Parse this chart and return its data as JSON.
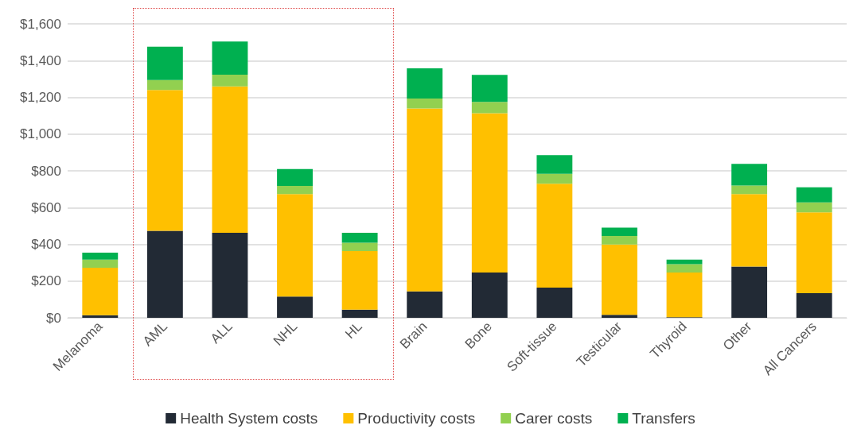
{
  "chart_data": {
    "type": "bar",
    "stacked": true,
    "categories": [
      "Melanoma",
      "AML",
      "ALL",
      "NHL",
      "HL",
      "Brain",
      "Bone",
      "Soft-tissue",
      "Testicular",
      "Thyroid",
      "Other",
      "All Cancers"
    ],
    "series": [
      {
        "name": "Health System costs",
        "color": "#222a35",
        "values": [
          14,
          473,
          463,
          116,
          44,
          144,
          246,
          164,
          16,
          3,
          279,
          134
        ]
      },
      {
        "name": "Productivity costs",
        "color": "#ffc000",
        "values": [
          258,
          767,
          796,
          557,
          319,
          995,
          867,
          566,
          383,
          243,
          395,
          440
        ]
      },
      {
        "name": "Carer costs",
        "color": "#92d050",
        "values": [
          45,
          54,
          64,
          45,
          46,
          55,
          62,
          54,
          46,
          46,
          46,
          54
        ]
      },
      {
        "name": "Transfers",
        "color": "#00b050",
        "values": [
          38,
          182,
          181,
          92,
          54,
          164,
          147,
          101,
          46,
          25,
          118,
          82
        ]
      }
    ],
    "ylim": [
      0,
      1600
    ],
    "yticks": [
      {
        "value": 0,
        "label": "$0"
      },
      {
        "value": 200,
        "label": "$200"
      },
      {
        "value": 400,
        "label": "$400"
      },
      {
        "value": 600,
        "label": "$600"
      },
      {
        "value": 800,
        "label": "$800"
      },
      {
        "value": 1000,
        "label": "$1,000"
      },
      {
        "value": 1200,
        "label": "$1,200"
      },
      {
        "value": 1400,
        "label": "$1,400"
      },
      {
        "value": 1600,
        "label": "$1,600"
      }
    ],
    "grid": "y",
    "legend": "bottom"
  }
}
